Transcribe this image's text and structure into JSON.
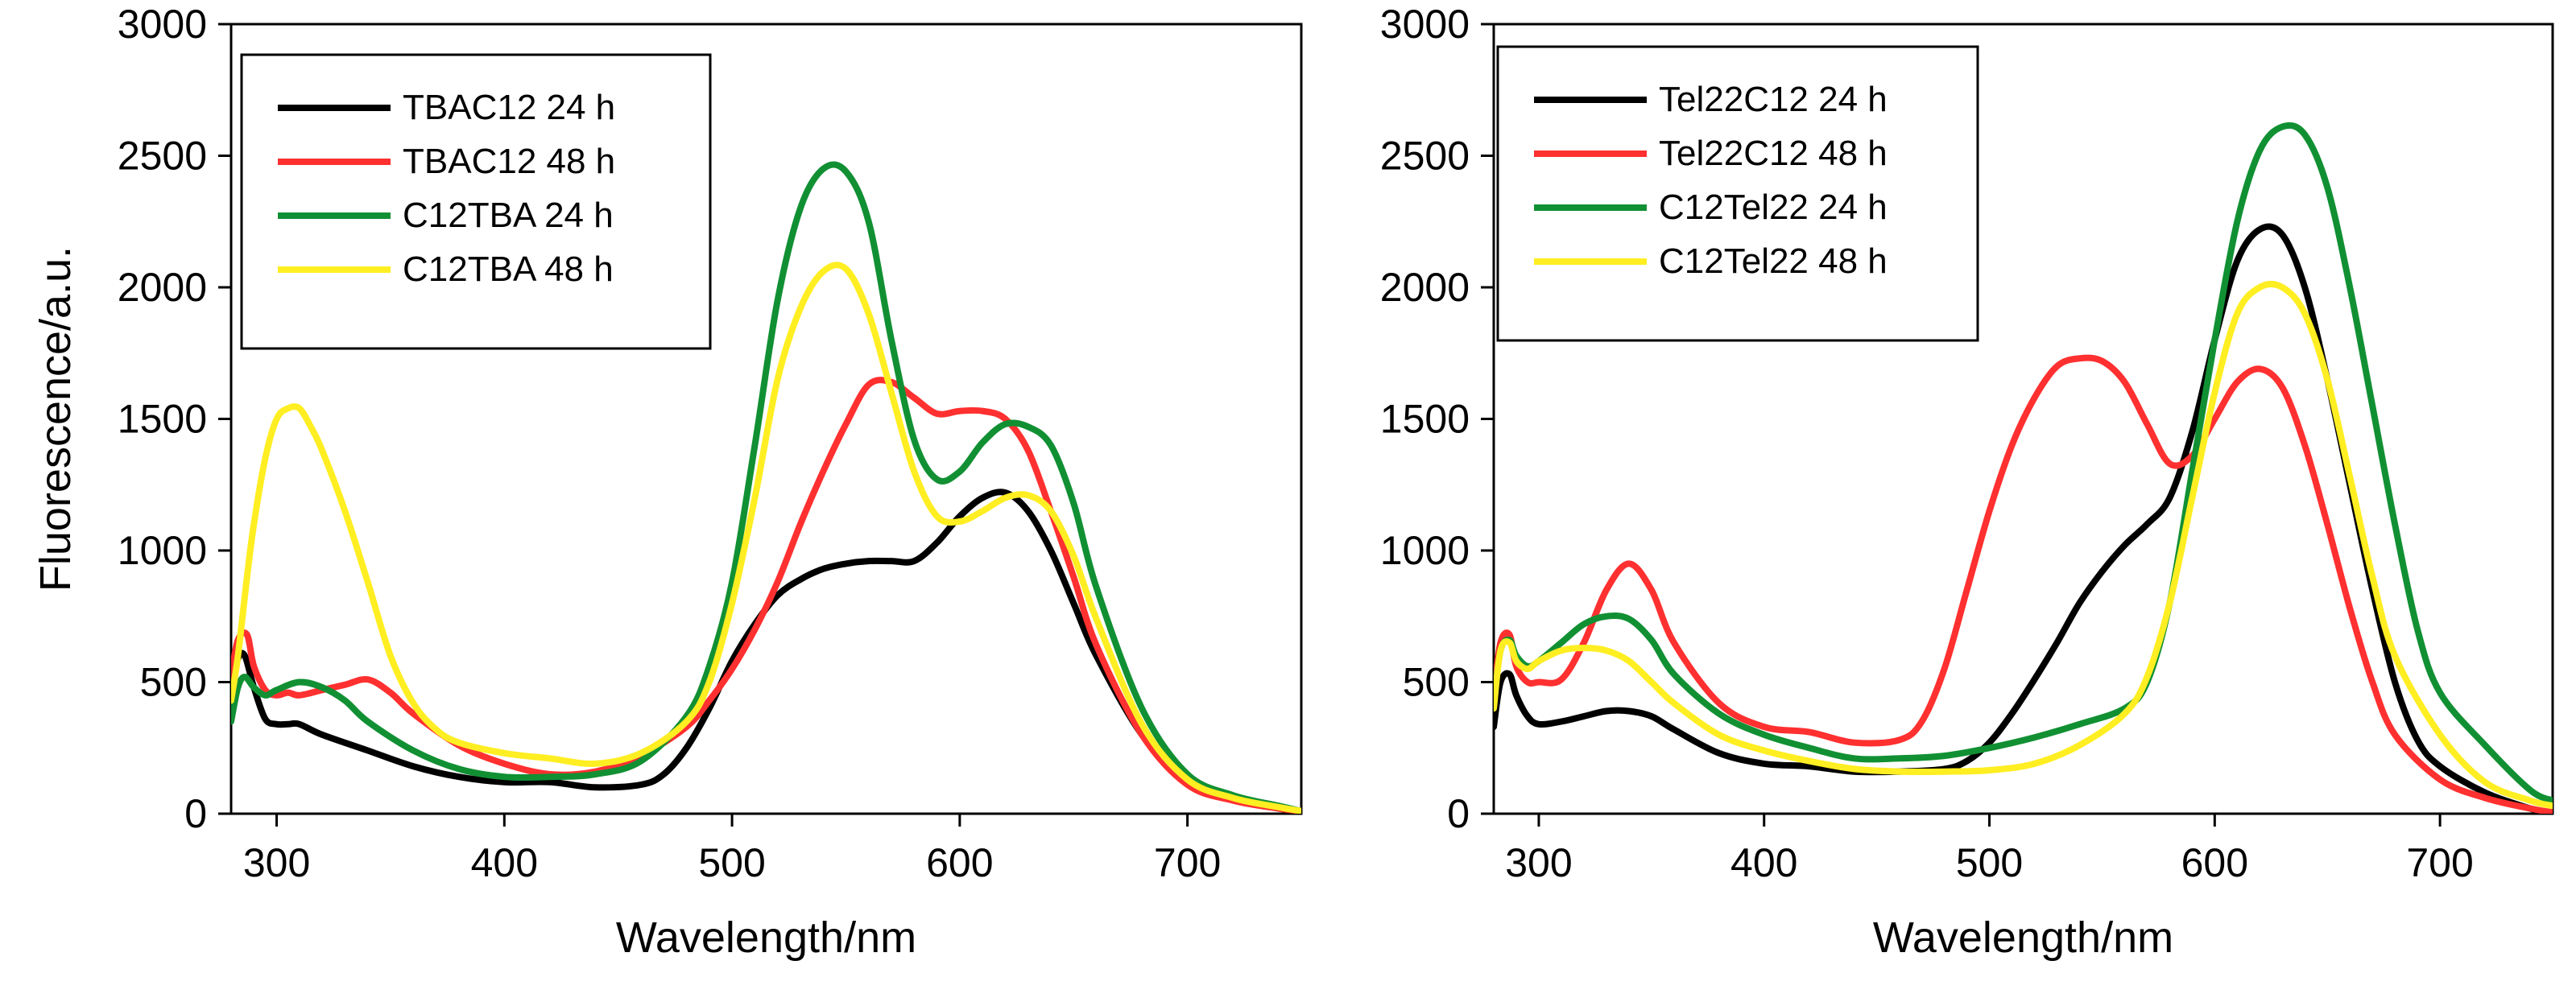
{
  "chart_data": [
    {
      "type": "line",
      "xlabel": "Wavelength/nm",
      "ylabel": "Fluorescence/a.u.",
      "xlim": [
        280,
        750
      ],
      "ylim": [
        0,
        3000
      ],
      "xticks": [
        300,
        400,
        500,
        600,
        700
      ],
      "yticks": [
        0,
        500,
        1000,
        1500,
        2000,
        2500,
        3000
      ],
      "ytick_labels": [
        "0",
        "500",
        "1000",
        "1500",
        "2000",
        "2500",
        "3000"
      ],
      "xtick_labels": [
        "300",
        "400",
        "500",
        "600",
        "700"
      ],
      "grid": false,
      "legend": "top-left",
      "series": [
        {
          "name": "TBAC12 24 h",
          "color": "#000000",
          "x": [
            280,
            283,
            286,
            290,
            295,
            300,
            305,
            310,
            320,
            340,
            360,
            380,
            400,
            420,
            440,
            460,
            470,
            480,
            490,
            500,
            510,
            520,
            530,
            540,
            550,
            560,
            570,
            580,
            590,
            600,
            610,
            620,
            630,
            640,
            650,
            660,
            680,
            700,
            720,
            740,
            750
          ],
          "y": [
            480,
            590,
            600,
            480,
            360,
            340,
            340,
            340,
            300,
            240,
            180,
            140,
            120,
            120,
            100,
            110,
            150,
            250,
            400,
            580,
            720,
            830,
            890,
            930,
            950,
            960,
            960,
            960,
            1030,
            1130,
            1200,
            1220,
            1150,
            1000,
            800,
            600,
            300,
            120,
            60,
            20,
            10
          ]
        },
        {
          "name": "TBAC12 48 h",
          "color": "#ff3030",
          "x": [
            280,
            283,
            287,
            290,
            295,
            300,
            305,
            310,
            320,
            330,
            340,
            350,
            360,
            380,
            400,
            420,
            440,
            460,
            480,
            490,
            500,
            510,
            520,
            530,
            540,
            550,
            560,
            570,
            580,
            590,
            600,
            610,
            620,
            630,
            640,
            650,
            660,
            680,
            700,
            720,
            740,
            750
          ],
          "y": [
            520,
            660,
            680,
            560,
            470,
            450,
            460,
            450,
            470,
            490,
            510,
            460,
            380,
            260,
            190,
            150,
            160,
            220,
            330,
            430,
            550,
            700,
            880,
            1100,
            1300,
            1480,
            1630,
            1640,
            1580,
            1520,
            1530,
            1530,
            1500,
            1380,
            1150,
            900,
            640,
            300,
            110,
            50,
            20,
            10
          ]
        },
        {
          "name": "C12TBA 24 h",
          "color": "#119033",
          "x": [
            280,
            283,
            286,
            290,
            295,
            300,
            310,
            320,
            330,
            340,
            360,
            380,
            400,
            420,
            440,
            460,
            480,
            490,
            500,
            510,
            520,
            530,
            540,
            550,
            560,
            570,
            580,
            590,
            600,
            610,
            620,
            630,
            640,
            650,
            660,
            680,
            700,
            720,
            740,
            750
          ],
          "y": [
            350,
            480,
            520,
            480,
            450,
            470,
            500,
            480,
            430,
            350,
            240,
            170,
            140,
            140,
            150,
            200,
            370,
            560,
            880,
            1400,
            1950,
            2300,
            2450,
            2440,
            2250,
            1800,
            1420,
            1270,
            1300,
            1410,
            1480,
            1470,
            1400,
            1180,
            860,
            400,
            150,
            70,
            30,
            10
          ]
        },
        {
          "name": "C12TBA 48 h",
          "color": "#ffee22",
          "x": [
            280,
            283,
            287,
            290,
            295,
            300,
            305,
            310,
            315,
            320,
            330,
            340,
            350,
            360,
            370,
            380,
            400,
            420,
            440,
            460,
            480,
            490,
            500,
            510,
            520,
            530,
            540,
            550,
            560,
            570,
            580,
            590,
            600,
            610,
            620,
            630,
            640,
            650,
            660,
            680,
            700,
            720,
            740,
            750
          ],
          "y": [
            430,
            600,
            900,
            1100,
            1350,
            1500,
            1540,
            1540,
            1470,
            1380,
            1150,
            880,
            600,
            420,
            320,
            270,
            230,
            210,
            190,
            230,
            350,
            500,
            800,
            1200,
            1650,
            1920,
            2060,
            2070,
            1900,
            1600,
            1300,
            1130,
            1110,
            1150,
            1200,
            1210,
            1150,
            980,
            740,
            340,
            130,
            60,
            25,
            10
          ]
        }
      ]
    },
    {
      "type": "line",
      "xlabel": "Wavelength/nm",
      "ylabel": "",
      "xlim": [
        280,
        750
      ],
      "ylim": [
        0,
        3000
      ],
      "xticks": [
        300,
        400,
        500,
        600,
        700
      ],
      "yticks": [
        0,
        500,
        1000,
        1500,
        2000,
        2500,
        3000
      ],
      "ytick_labels": [
        "0",
        "500",
        "1000",
        "1500",
        "2000",
        "2500",
        "3000"
      ],
      "xtick_labels": [
        "300",
        "400",
        "500",
        "600",
        "700"
      ],
      "grid": false,
      "legend": "top-left",
      "series": [
        {
          "name": "Tel22C12 24 h",
          "color": "#000000",
          "x": [
            280,
            283,
            287,
            290,
            295,
            300,
            310,
            320,
            330,
            340,
            350,
            360,
            380,
            400,
            420,
            440,
            460,
            480,
            490,
            500,
            510,
            520,
            530,
            540,
            550,
            560,
            570,
            580,
            590,
            600,
            610,
            620,
            630,
            640,
            650,
            660,
            670,
            680,
            690,
            700,
            720,
            740,
            750
          ],
          "y": [
            330,
            500,
            530,
            450,
            370,
            340,
            350,
            370,
            390,
            390,
            370,
            320,
            230,
            190,
            180,
            160,
            160,
            170,
            200,
            270,
            380,
            510,
            650,
            800,
            920,
            1020,
            1100,
            1200,
            1450,
            1800,
            2100,
            2220,
            2200,
            2000,
            1650,
            1250,
            850,
            500,
            280,
            180,
            80,
            20,
            0
          ]
        },
        {
          "name": "Tel22C12 48 h",
          "color": "#ff3030",
          "x": [
            280,
            283,
            287,
            290,
            295,
            300,
            310,
            320,
            330,
            340,
            350,
            360,
            380,
            400,
            420,
            440,
            460,
            470,
            480,
            490,
            500,
            510,
            520,
            530,
            540,
            550,
            560,
            570,
            580,
            590,
            600,
            610,
            620,
            630,
            640,
            650,
            660,
            670,
            680,
            700,
            720,
            740,
            750
          ],
          "y": [
            450,
            650,
            680,
            560,
            500,
            500,
            510,
            650,
            850,
            950,
            850,
            650,
            420,
            330,
            310,
            270,
            280,
            350,
            550,
            850,
            1150,
            1400,
            1580,
            1700,
            1730,
            1720,
            1640,
            1480,
            1330,
            1360,
            1500,
            1640,
            1690,
            1620,
            1400,
            1100,
            780,
            500,
            300,
            130,
            60,
            20,
            5
          ]
        },
        {
          "name": "C12Tel22 24 h",
          "color": "#119033",
          "x": [
            280,
            283,
            287,
            290,
            295,
            300,
            310,
            320,
            330,
            340,
            350,
            360,
            380,
            400,
            420,
            440,
            460,
            480,
            500,
            520,
            540,
            560,
            570,
            580,
            590,
            600,
            610,
            620,
            630,
            640,
            650,
            660,
            670,
            680,
            690,
            700,
            720,
            740,
            750
          ],
          "y": [
            420,
            620,
            660,
            600,
            560,
            580,
            650,
            720,
            750,
            740,
            660,
            530,
            380,
            300,
            250,
            210,
            210,
            220,
            250,
            290,
            340,
            400,
            500,
            800,
            1300,
            1800,
            2250,
            2520,
            2610,
            2580,
            2380,
            2000,
            1550,
            1100,
            700,
            460,
            260,
            90,
            50
          ]
        },
        {
          "name": "C12Tel22 48 h",
          "color": "#ffee22",
          "x": [
            280,
            283,
            287,
            290,
            295,
            300,
            310,
            320,
            330,
            340,
            350,
            360,
            380,
            400,
            420,
            440,
            460,
            480,
            500,
            520,
            540,
            560,
            570,
            580,
            590,
            600,
            610,
            620,
            630,
            640,
            650,
            660,
            670,
            680,
            700,
            720,
            740,
            750
          ],
          "y": [
            400,
            620,
            650,
            580,
            550,
            580,
            620,
            630,
            620,
            580,
            500,
            420,
            300,
            240,
            200,
            170,
            160,
            160,
            165,
            190,
            260,
            380,
            520,
            800,
            1200,
            1600,
            1900,
            2000,
            2000,
            1900,
            1650,
            1280,
            900,
            600,
            300,
            120,
            50,
            30
          ]
        }
      ]
    }
  ]
}
